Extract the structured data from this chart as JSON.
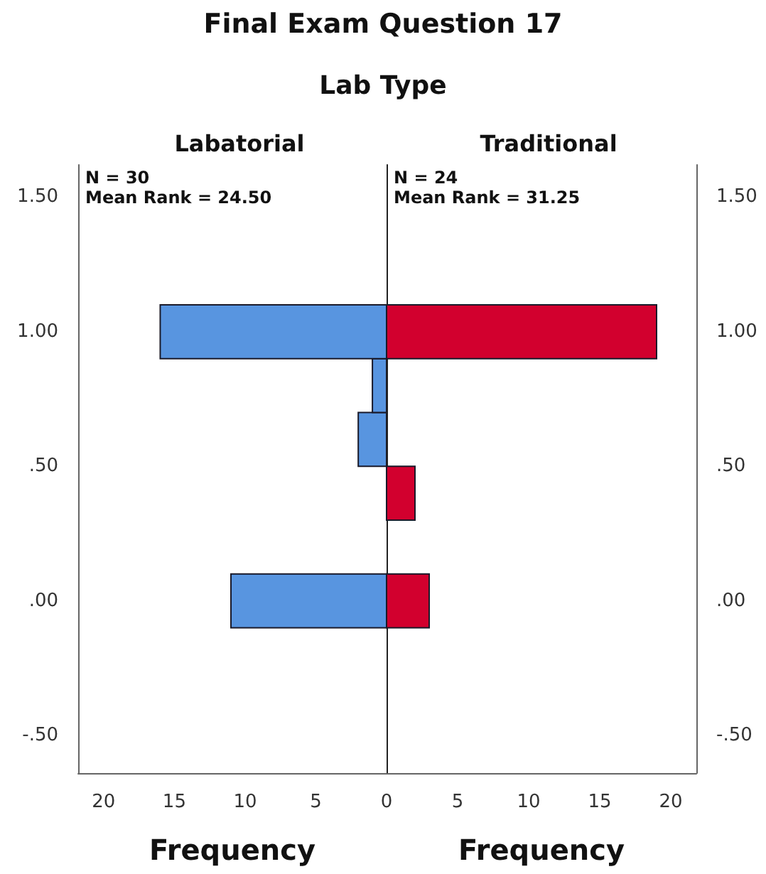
{
  "chart_data": [
    {
      "type": "histogram",
      "orientation": "horizontal",
      "title": "Final Exam Question 17",
      "subtitle": "Lab Type",
      "xlabel": "Frequency",
      "bins": [
        -0.1,
        0.1,
        0.3,
        0.5,
        0.7,
        0.9,
        1.1
      ],
      "series": [
        {
          "name": "Labatorial",
          "color": "#5895e0",
          "values": [
            11,
            0,
            0,
            2,
            1,
            16
          ]
        }
      ],
      "xlim": [
        21.8,
        0
      ],
      "xticks": [
        20,
        15,
        10,
        5
      ],
      "ylim": [
        -0.64,
        1.62
      ],
      "yticks": [
        {
          "value": -0.5,
          "label": "-.50"
        },
        {
          "value": 0,
          "label": ".00"
        },
        {
          "value": 0.5,
          "label": ".50"
        },
        {
          "value": 1,
          "label": "1.00"
        },
        {
          "value": 1.5,
          "label": "1.50"
        }
      ],
      "annotations": [
        "N = 30",
        "Mean Rank = 24.50"
      ]
    },
    {
      "type": "histogram",
      "orientation": "horizontal",
      "xlabel": "Frequency",
      "bins": [
        -0.1,
        0.1,
        0.3,
        0.5,
        0.7,
        0.9,
        1.1
      ],
      "series": [
        {
          "name": "Traditional",
          "color": "#d2002e",
          "values": [
            3,
            0,
            2,
            0,
            0,
            19
          ]
        }
      ],
      "xlim": [
        0,
        21.8
      ],
      "xticks": [
        0,
        5,
        10,
        15,
        20
      ],
      "ylim": [
        -0.64,
        1.62
      ],
      "yticks": [
        {
          "value": -0.5,
          "label": "-.50"
        },
        {
          "value": 0,
          "label": ".00"
        },
        {
          "value": 0.5,
          "label": ".50"
        },
        {
          "value": 1,
          "label": "1.00"
        },
        {
          "value": 1.5,
          "label": "1.50"
        }
      ],
      "annotations": [
        "N = 24",
        "Mean Rank = 31.25"
      ]
    }
  ]
}
